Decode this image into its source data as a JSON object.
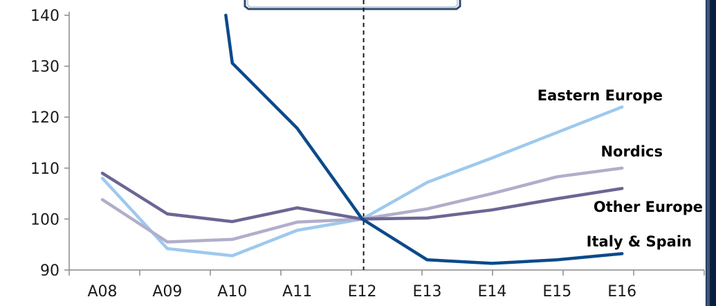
{
  "chart_data": {
    "type": "line",
    "categories": [
      "A08",
      "A09",
      "A10",
      "A11",
      "E12",
      "E13",
      "E14",
      "E15",
      "E16"
    ],
    "ylim": [
      90,
      140
    ],
    "yticks": [
      90,
      100,
      110,
      120,
      130,
      140
    ],
    "grid": false,
    "divider_at": "E12",
    "series": [
      {
        "name": "Eastern Europe",
        "color": "#9ec9ee",
        "values": [
          108,
          94.2,
          92.8,
          97.8,
          100,
          107.2,
          112,
          117,
          122
        ]
      },
      {
        "name": "Nordics",
        "color": "#b1aecb",
        "values": [
          103.8,
          95.5,
          96,
          99.4,
          100,
          102,
          105,
          108.3,
          110
        ]
      },
      {
        "name": "Other Europe",
        "color": "#6b6693",
        "values": [
          109,
          101,
          99.5,
          102.2,
          100,
          100.2,
          101.8,
          104,
          106
        ]
      },
      {
        "name": "Italy & Spain",
        "color": "#0b4a8b",
        "values": [
          null,
          null,
          130.6,
          117.8,
          100,
          92,
          91.3,
          92,
          93.2
        ],
        "lead_in": {
          "x": 1.9,
          "y": 140
        }
      }
    ]
  }
}
